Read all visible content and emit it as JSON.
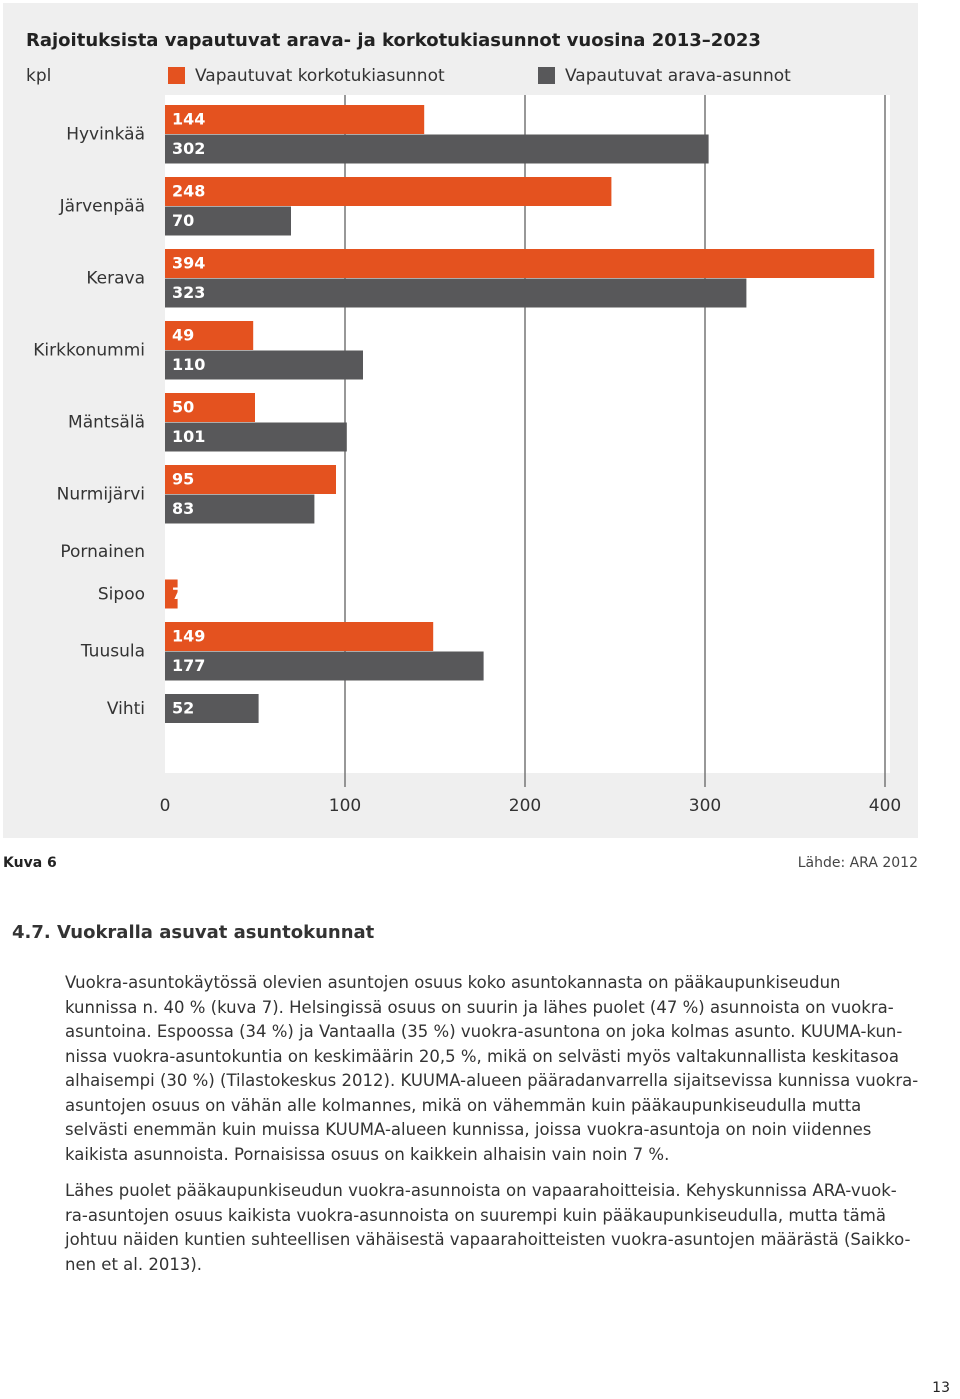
{
  "chart_data": {
    "type": "bar",
    "orientation": "horizontal",
    "title": "Rajoituksista vapautuvat arava- ja korkotukiasunnot vuosina 2013–2023",
    "y_label": "kpl",
    "categories": [
      "Hyvinkää",
      "Järvenpää",
      "Kerava",
      "Kirkkonummi",
      "Mäntsälä",
      "Nurmijärvi",
      "Pornainen",
      "Sipoo",
      "Tuusula",
      "Vihti"
    ],
    "series": [
      {
        "name": "Vapautuvat korkotukiasunnot",
        "color": "#e4521f",
        "values": [
          144,
          248,
          394,
          49,
          50,
          95,
          null,
          7,
          149,
          null
        ]
      },
      {
        "name": "Vapautuvat arava-asunnot",
        "color": "#58585a",
        "values": [
          302,
          70,
          323,
          110,
          101,
          83,
          null,
          null,
          177,
          52
        ]
      }
    ],
    "xlim": [
      0,
      400
    ],
    "xticks": [
      0,
      100,
      200,
      300,
      400
    ],
    "grid": true
  },
  "figure": {
    "label": "Kuva 6",
    "source": "Lähde: ARA 2012"
  },
  "section": {
    "heading": "4.7. Vuokralla asuvat asuntokunnat",
    "paragraphs": [
      {
        "lines": [
          "Vuokra-asuntokäytössä olevien asuntojen osuus koko asuntokannasta on pääkaupunkiseudun",
          "kunnissa n. 40 % (kuva 7). Helsingissä osuus on suurin ja lähes puolet (47 %) asunnoista on vuokra-",
          "asuntoina. Espoossa (34 %) ja Vantaalla (35 %) vuokra-asuntona on joka kolmas asunto. KUUMA-kun-",
          "nissa vuokra-asuntokuntia on keskimäärin 20,5 %, mikä on selvästi myös valtakunnallista keskitasoa",
          "alhaisempi (30 %) (Tilastokeskus 2012). KUUMA-alueen pääradanvarrella sijaitsevissa kunnissa vuokra-",
          "asuntojen osuus on vähän alle kolmannes, mikä on vähemmän kuin pääkaupunkiseudulla mutta",
          "selvästi enemmän kuin muissa KUUMA-alueen kunnissa, joissa vuokra-asuntoja on noin viidennes",
          "kaikista asunnoista. Pornaisissa osuus on kaikkein alhaisin vain noin 7 %."
        ]
      },
      {
        "lines": [
          "Lähes puolet pääkaupunkiseudun vuokra-asunnoista on vapaarahoitteisia. Kehyskunnissa ARA-vuok-",
          "ra-asuntojen osuus kaikista vuokra-asunnoista on suurempi kuin pääkaupunkiseudulla, mutta tämä",
          "johtuu näiden kuntien suhteellisen vähäisestä vapaarahoitteisten vuokra-asuntojen määrästä (Saikko-",
          "nen et al. 2013)."
        ]
      }
    ]
  },
  "page_number": "13"
}
